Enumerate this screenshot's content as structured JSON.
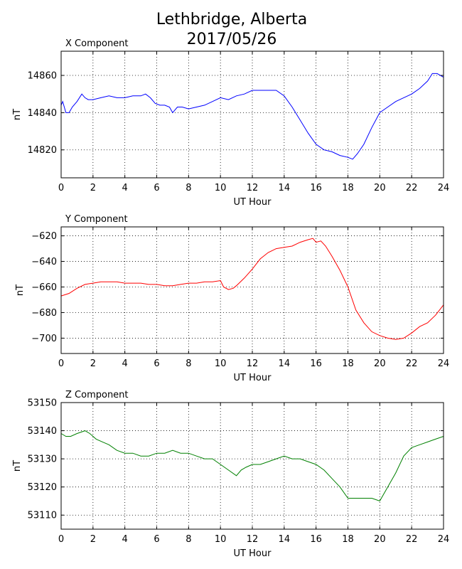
{
  "figure": {
    "title_line1": "Lethbridge, Alberta",
    "title_line2": "2017/05/26"
  },
  "chart_data": [
    {
      "type": "line",
      "title": "X Component",
      "xlabel": "UT Hour",
      "ylabel": "nT",
      "xlim": [
        0,
        24
      ],
      "ylim": [
        14805,
        14873
      ],
      "xticks": [
        0,
        2,
        4,
        6,
        8,
        10,
        12,
        14,
        16,
        18,
        20,
        22,
        24
      ],
      "yticks": [
        14820,
        14840,
        14860
      ],
      "grid": true,
      "color": "#0000ff",
      "x": [
        0,
        0.1,
        0.3,
        0.5,
        0.7,
        1.0,
        1.3,
        1.5,
        1.7,
        2.0,
        2.5,
        3.0,
        3.5,
        4.0,
        4.5,
        5.0,
        5.3,
        5.6,
        5.9,
        6.2,
        6.5,
        6.8,
        7.0,
        7.3,
        7.6,
        8.0,
        8.5,
        9.0,
        9.5,
        10.0,
        10.5,
        11.0,
        11.5,
        12.0,
        12.5,
        13.0,
        13.5,
        14.0,
        14.5,
        15.0,
        15.5,
        16.0,
        16.5,
        17.0,
        17.5,
        18.0,
        18.3,
        18.6,
        19.0,
        19.5,
        20.0,
        20.5,
        21.0,
        21.5,
        22.0,
        22.5,
        23.0,
        23.3,
        23.6,
        24.0
      ],
      "y": [
        14844,
        14846,
        14840,
        14840,
        14843,
        14846,
        14850,
        14848,
        14847,
        14847,
        14848,
        14849,
        14848,
        14848,
        14849,
        14849,
        14850,
        14848,
        14845,
        14844,
        14844,
        14843,
        14840,
        14843,
        14843,
        14842,
        14843,
        14844,
        14846,
        14848,
        14847,
        14849,
        14850,
        14852,
        14852,
        14852,
        14852,
        14849,
        14843,
        14836,
        14829,
        14823,
        14820,
        14819,
        14817,
        14816,
        14815,
        14818,
        14823,
        14832,
        14840,
        14843,
        14846,
        14848,
        14850,
        14853,
        14857,
        14861,
        14861,
        14859
      ]
    },
    {
      "type": "line",
      "title": "Y Component",
      "xlabel": "UT Hour",
      "ylabel": "nT",
      "xlim": [
        0,
        24
      ],
      "ylim": [
        -712,
        -613
      ],
      "xticks": [
        0,
        2,
        4,
        6,
        8,
        10,
        12,
        14,
        16,
        18,
        20,
        22,
        24
      ],
      "yticks": [
        -620,
        -640,
        -660,
        -680,
        -700
      ],
      "grid": true,
      "color": "#ff0000",
      "x": [
        0,
        0.5,
        1.0,
        1.5,
        2.0,
        2.5,
        3.0,
        3.5,
        4.0,
        4.5,
        5.0,
        5.5,
        6.0,
        6.5,
        7.0,
        7.5,
        8.0,
        8.5,
        9.0,
        9.5,
        10.0,
        10.2,
        10.5,
        10.8,
        11.0,
        11.5,
        12.0,
        12.5,
        13.0,
        13.5,
        14.0,
        14.5,
        15.0,
        15.5,
        15.8,
        16.0,
        16.3,
        16.6,
        17.0,
        17.5,
        18.0,
        18.5,
        19.0,
        19.5,
        20.0,
        20.5,
        21.0,
        21.5,
        22.0,
        22.5,
        23.0,
        23.5,
        24.0
      ],
      "y": [
        -667,
        -665,
        -661,
        -658,
        -657,
        -656,
        -656,
        -656,
        -657,
        -657,
        -657,
        -658,
        -658,
        -659,
        -659,
        -658,
        -657,
        -657,
        -656,
        -656,
        -655,
        -660,
        -662,
        -661,
        -659,
        -653,
        -646,
        -638,
        -633,
        -630,
        -629,
        -628,
        -625,
        -623,
        -622,
        -625,
        -624,
        -628,
        -636,
        -647,
        -660,
        -678,
        -688,
        -695,
        -698,
        -700,
        -701,
        -700,
        -696,
        -691,
        -688,
        -682,
        -674
      ]
    },
    {
      "type": "line",
      "title": "Z Component",
      "xlabel": "UT Hour",
      "ylabel": "nT",
      "xlim": [
        0,
        24
      ],
      "ylim": [
        53105,
        53150
      ],
      "xticks": [
        0,
        2,
        4,
        6,
        8,
        10,
        12,
        14,
        16,
        18,
        20,
        22,
        24
      ],
      "yticks": [
        53110,
        53120,
        53130,
        53140,
        53150
      ],
      "grid": true,
      "color": "#008000",
      "x": [
        0,
        0.3,
        0.6,
        1.0,
        1.5,
        1.8,
        2.2,
        2.6,
        3.0,
        3.5,
        4.0,
        4.5,
        5.0,
        5.5,
        6.0,
        6.5,
        7.0,
        7.5,
        8.0,
        8.5,
        9.0,
        9.5,
        10.0,
        10.5,
        11.0,
        11.3,
        11.6,
        12.0,
        12.5,
        13.0,
        13.5,
        14.0,
        14.5,
        15.0,
        15.5,
        16.0,
        16.5,
        17.0,
        17.5,
        18.0,
        18.5,
        19.0,
        19.5,
        20.0,
        20.5,
        21.0,
        21.5,
        22.0,
        22.5,
        23.0,
        23.5,
        24.0
      ],
      "y": [
        53139,
        53138,
        53138,
        53139,
        53140,
        53139,
        53137,
        53136,
        53135,
        53133,
        53132,
        53132,
        53131,
        53131,
        53132,
        53132,
        53133,
        53132,
        53132,
        53131,
        53130,
        53130,
        53128,
        53126,
        53124,
        53126,
        53127,
        53128,
        53128,
        53129,
        53130,
        53131,
        53130,
        53130,
        53129,
        53128,
        53126,
        53123,
        53120,
        53116,
        53116,
        53116,
        53116,
        53115,
        53120,
        53125,
        53131,
        53134,
        53135,
        53136,
        53137,
        53138
      ]
    }
  ]
}
